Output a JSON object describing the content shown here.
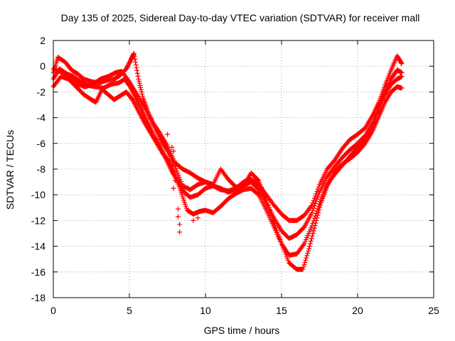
{
  "chart_data": {
    "type": "scatter",
    "title": "Day 135 of 2025, Sidereal Day-to-day VTEC variation (SDTVAR) for receiver mall",
    "xlabel": "GPS time / hours",
    "ylabel": "SDTVAR / TECUs",
    "xlim": [
      0,
      25
    ],
    "ylim": [
      -18,
      2
    ],
    "xticks": [
      0,
      5,
      10,
      15,
      20,
      25
    ],
    "yticks": [
      2,
      0,
      -2,
      -4,
      -6,
      -8,
      -10,
      -12,
      -14,
      -16,
      -18
    ],
    "grid": true,
    "marker": "+",
    "color": "#ff0000",
    "series": [
      {
        "name": "track-1",
        "points": [
          [
            0,
            -0.5
          ],
          [
            0.3,
            0.7
          ],
          [
            0.8,
            0.3
          ],
          [
            1.2,
            -0.3
          ],
          [
            1.6,
            -0.6
          ],
          [
            2.0,
            -1.0
          ],
          [
            2.5,
            -1.2
          ],
          [
            3.0,
            -1.3
          ],
          [
            3.5,
            -1.1
          ],
          [
            4.0,
            -1.0
          ],
          [
            4.4,
            -0.7
          ],
          [
            4.8,
            -0.2
          ],
          [
            5.1,
            0.5
          ],
          [
            5.3,
            1.0
          ],
          [
            5.6,
            -1.0
          ],
          [
            5.9,
            -2.5
          ],
          [
            6.2,
            -3.5
          ],
          [
            6.6,
            -4.5
          ],
          [
            7.0,
            -5.2
          ],
          [
            7.5,
            -6.2
          ],
          [
            8.0,
            -7.5
          ],
          [
            8.5,
            -8.0
          ],
          [
            9.0,
            -8.3
          ],
          [
            9.5,
            -8.7
          ],
          [
            10.0,
            -9.0
          ],
          [
            10.5,
            -9.3
          ],
          [
            11.0,
            -9.6
          ],
          [
            11.5,
            -9.7
          ],
          [
            12.0,
            -9.5
          ],
          [
            12.5,
            -9.0
          ],
          [
            13.0,
            -8.8
          ],
          [
            13.5,
            -9.2
          ],
          [
            14.0,
            -10.0
          ],
          [
            14.5,
            -10.8
          ],
          [
            15.0,
            -11.5
          ],
          [
            15.5,
            -12.0
          ],
          [
            16.0,
            -12.0
          ],
          [
            16.5,
            -11.6
          ],
          [
            17.0,
            -10.8
          ],
          [
            17.5,
            -9.2
          ],
          [
            18.0,
            -8.0
          ],
          [
            18.5,
            -7.3
          ],
          [
            19.0,
            -6.4
          ],
          [
            19.5,
            -5.7
          ],
          [
            20.0,
            -5.3
          ],
          [
            20.5,
            -4.8
          ],
          [
            21.0,
            -3.8
          ],
          [
            21.4,
            -2.8
          ],
          [
            21.8,
            -1.5
          ],
          [
            22.2,
            -0.3
          ],
          [
            22.6,
            0.8
          ],
          [
            22.9,
            0.2
          ]
        ]
      },
      {
        "name": "track-2",
        "points": [
          [
            0,
            -1.0
          ],
          [
            0.4,
            -0.2
          ],
          [
            0.9,
            -0.6
          ],
          [
            1.3,
            -0.8
          ],
          [
            1.8,
            -1.2
          ],
          [
            2.3,
            -1.5
          ],
          [
            2.8,
            -1.6
          ],
          [
            3.3,
            -1.7
          ],
          [
            3.8,
            -1.4
          ],
          [
            4.3,
            -1.3
          ],
          [
            4.7,
            -1.0
          ],
          [
            5.0,
            -1.5
          ],
          [
            5.4,
            -2.4
          ],
          [
            5.8,
            -3.4
          ],
          [
            6.2,
            -4.4
          ],
          [
            6.6,
            -5.4
          ],
          [
            7.0,
            -6.2
          ],
          [
            7.4,
            -7.2
          ],
          [
            7.8,
            -8.2
          ],
          [
            8.2,
            -9.0
          ],
          [
            8.6,
            -9.8
          ],
          [
            9.0,
            -10.2
          ],
          [
            9.5,
            -10.0
          ],
          [
            10.0,
            -9.5
          ],
          [
            10.5,
            -9.3
          ],
          [
            11.0,
            -9.5
          ],
          [
            11.5,
            -9.8
          ],
          [
            12.0,
            -9.6
          ],
          [
            12.5,
            -9.3
          ],
          [
            13.0,
            -9.0
          ],
          [
            13.5,
            -9.6
          ],
          [
            14.0,
            -10.6
          ],
          [
            14.5,
            -11.8
          ],
          [
            15.0,
            -12.8
          ],
          [
            15.5,
            -13.4
          ],
          [
            16.0,
            -13.1
          ],
          [
            16.5,
            -12.5
          ],
          [
            17.0,
            -11.4
          ],
          [
            17.5,
            -9.8
          ],
          [
            18.0,
            -8.6
          ],
          [
            18.5,
            -7.8
          ],
          [
            19.0,
            -7.1
          ],
          [
            19.5,
            -6.5
          ],
          [
            20.0,
            -6.0
          ],
          [
            20.5,
            -5.4
          ],
          [
            21.0,
            -4.4
          ],
          [
            21.4,
            -3.2
          ],
          [
            21.8,
            -2.0
          ],
          [
            22.2,
            -1.0
          ],
          [
            22.6,
            -0.3
          ],
          [
            22.9,
            -0.5
          ]
        ]
      },
      {
        "name": "track-3",
        "points": [
          [
            0,
            -1.6
          ],
          [
            0.5,
            -0.8
          ],
          [
            1.0,
            -1.0
          ],
          [
            1.5,
            -1.6
          ],
          [
            2.0,
            -2.2
          ],
          [
            2.5,
            -2.6
          ],
          [
            2.8,
            -2.8
          ],
          [
            3.2,
            -1.8
          ],
          [
            3.6,
            -2.2
          ],
          [
            4.0,
            -2.6
          ],
          [
            4.4,
            -2.3
          ],
          [
            4.8,
            -2.0
          ],
          [
            5.2,
            -2.6
          ],
          [
            5.6,
            -3.5
          ],
          [
            6.0,
            -4.4
          ],
          [
            6.4,
            -5.2
          ],
          [
            6.8,
            -6.0
          ],
          [
            7.2,
            -6.8
          ],
          [
            7.6,
            -7.4
          ],
          [
            8.0,
            -8.4
          ],
          [
            8.4,
            -9.8
          ],
          [
            8.8,
            -11.2
          ],
          [
            9.2,
            -11.5
          ],
          [
            9.6,
            -11.3
          ],
          [
            10.0,
            -11.2
          ],
          [
            10.5,
            -11.4
          ],
          [
            11.0,
            -10.9
          ],
          [
            11.5,
            -10.3
          ],
          [
            12.0,
            -9.9
          ],
          [
            12.5,
            -9.6
          ],
          [
            13.0,
            -9.5
          ],
          [
            13.5,
            -10.0
          ],
          [
            14.0,
            -11.2
          ],
          [
            14.5,
            -12.5
          ],
          [
            15.0,
            -13.8
          ],
          [
            15.5,
            -14.7
          ],
          [
            16.0,
            -14.6
          ],
          [
            16.5,
            -13.8
          ],
          [
            17.0,
            -12.4
          ],
          [
            17.5,
            -10.7
          ],
          [
            18.0,
            -9.3
          ],
          [
            18.5,
            -8.2
          ],
          [
            19.0,
            -7.6
          ],
          [
            19.5,
            -7.2
          ],
          [
            20.0,
            -6.7
          ],
          [
            20.5,
            -6.0
          ],
          [
            21.0,
            -5.0
          ],
          [
            21.4,
            -3.9
          ],
          [
            21.8,
            -2.8
          ],
          [
            22.2,
            -2.0
          ],
          [
            22.6,
            -1.6
          ],
          [
            22.9,
            -1.7
          ]
        ]
      },
      {
        "name": "track-4",
        "points": [
          [
            0,
            -0.2
          ],
          [
            0.6,
            -0.5
          ],
          [
            1.1,
            -0.8
          ],
          [
            1.6,
            -1.4
          ],
          [
            2.1,
            -1.6
          ],
          [
            2.6,
            -1.4
          ],
          [
            3.1,
            -1.0
          ],
          [
            3.6,
            -0.8
          ],
          [
            4.1,
            -0.5
          ],
          [
            4.5,
            -0.4
          ],
          [
            5.0,
            -1.2
          ],
          [
            5.5,
            -2.2
          ],
          [
            6.0,
            -3.2
          ],
          [
            6.5,
            -4.4
          ],
          [
            7.0,
            -5.6
          ],
          [
            7.5,
            -6.6
          ],
          [
            8.0,
            -7.8
          ],
          [
            8.5,
            -9.3
          ],
          [
            9.0,
            -9.6
          ],
          [
            9.5,
            -9.2
          ],
          [
            10.0,
            -9.0
          ],
          [
            10.5,
            -9.2
          ],
          [
            11.0,
            -8.0
          ],
          [
            11.5,
            -8.8
          ],
          [
            12.0,
            -9.4
          ],
          [
            12.5,
            -9.3
          ],
          [
            13.0,
            -8.3
          ],
          [
            13.5,
            -8.9
          ],
          [
            14.0,
            -10.4
          ],
          [
            14.5,
            -12.2
          ],
          [
            15.0,
            -13.8
          ],
          [
            15.5,
            -15.3
          ],
          [
            16.0,
            -15.8
          ],
          [
            16.4,
            -15.8
          ],
          [
            16.8,
            -14.2
          ],
          [
            17.2,
            -12.4
          ],
          [
            17.6,
            -10.6
          ],
          [
            18.0,
            -9.2
          ],
          [
            18.5,
            -8.4
          ],
          [
            19.0,
            -7.7
          ],
          [
            19.5,
            -7.0
          ],
          [
            20.0,
            -6.3
          ],
          [
            20.5,
            -5.8
          ],
          [
            21.0,
            -4.6
          ],
          [
            21.4,
            -3.3
          ],
          [
            21.8,
            -2.2
          ],
          [
            22.2,
            -1.4
          ],
          [
            22.6,
            -1.0
          ],
          [
            22.9,
            -0.8
          ]
        ]
      }
    ],
    "outliers": [
      [
        7.5,
        -5.3
      ],
      [
        7.8,
        -6.3
      ],
      [
        7.9,
        -6.6
      ],
      [
        8.0,
        -8.9
      ],
      [
        7.9,
        -9.5
      ],
      [
        8.2,
        -11.1
      ],
      [
        8.2,
        -11.7
      ],
      [
        8.3,
        -12.3
      ],
      [
        8.3,
        -12.9
      ],
      [
        9.2,
        -12.0
      ],
      [
        9.5,
        -11.8
      ]
    ]
  }
}
